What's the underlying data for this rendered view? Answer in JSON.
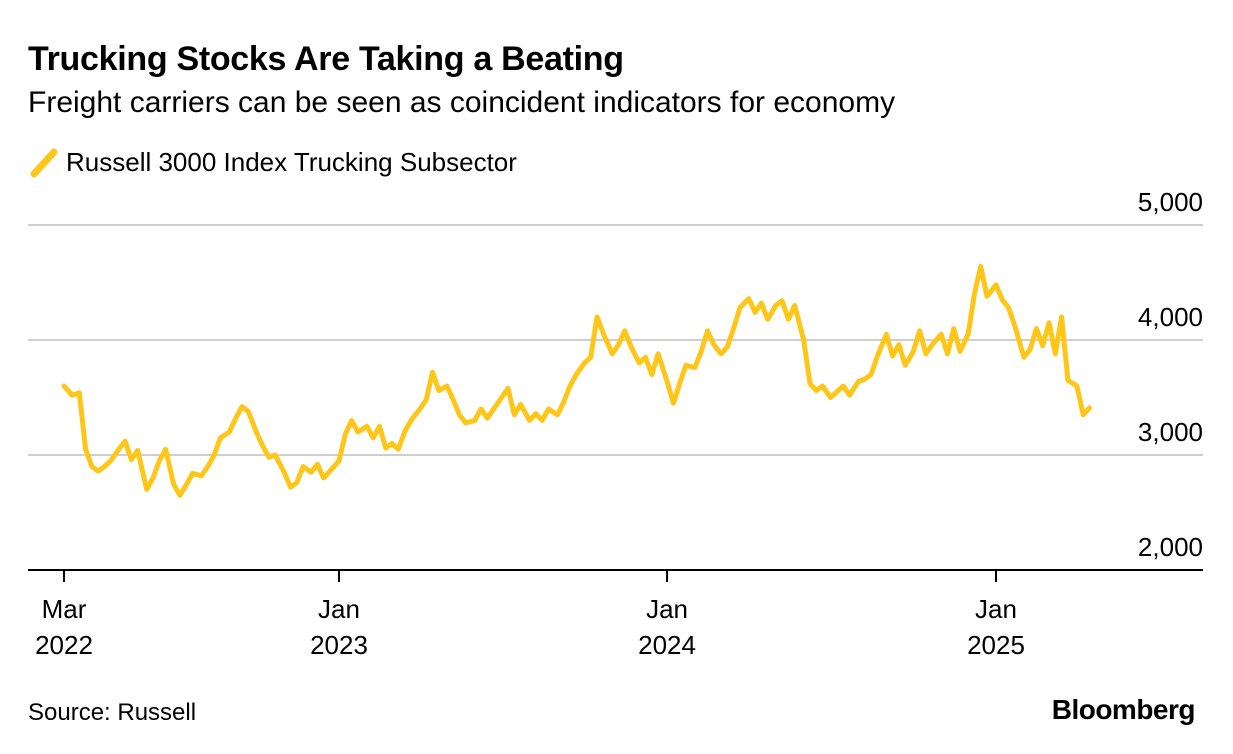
{
  "chart_data": {
    "type": "line",
    "title": "Trucking Stocks Are Taking a Beating",
    "subtitle": "Freight carriers can be seen as coincident indicators for economy",
    "source": "Source: Russell",
    "brand": "Bloomberg",
    "ylim": [
      2000,
      5000
    ],
    "y_ticks": [
      {
        "value": 5000,
        "label": "5,000"
      },
      {
        "value": 4000,
        "label": "4,000"
      },
      {
        "value": 3000,
        "label": "3,000"
      },
      {
        "value": 2000,
        "label": "2,000"
      }
    ],
    "x_range": [
      "2022-02-01",
      "2025-06-15"
    ],
    "x_ticks": [
      {
        "date": "2022-03-01",
        "label1": "Mar",
        "label2": "2022"
      },
      {
        "date": "2023-01-01",
        "label1": "Jan",
        "label2": "2023"
      },
      {
        "date": "2024-01-01",
        "label1": "Jan",
        "label2": "2024"
      },
      {
        "date": "2025-01-01",
        "label1": "Jan",
        "label2": "2025"
      }
    ],
    "grid": true,
    "legend_position": "top-left",
    "series": [
      {
        "name": "Russell 3000 Index Trucking Subsector",
        "color": "#FFC61A",
        "points": [
          [
            "2022-03-01",
            3600
          ],
          [
            "2022-03-10",
            3520
          ],
          [
            "2022-03-18",
            3540
          ],
          [
            "2022-03-25",
            3050
          ],
          [
            "2022-04-01",
            2900
          ],
          [
            "2022-04-08",
            2860
          ],
          [
            "2022-04-15",
            2900
          ],
          [
            "2022-04-22",
            2950
          ],
          [
            "2022-05-01",
            3050
          ],
          [
            "2022-05-08",
            3120
          ],
          [
            "2022-05-15",
            2960
          ],
          [
            "2022-05-22",
            3040
          ],
          [
            "2022-06-01",
            2700
          ],
          [
            "2022-06-08",
            2800
          ],
          [
            "2022-06-15",
            2950
          ],
          [
            "2022-06-22",
            3050
          ],
          [
            "2022-07-01",
            2750
          ],
          [
            "2022-07-08",
            2650
          ],
          [
            "2022-07-15",
            2740
          ],
          [
            "2022-07-22",
            2840
          ],
          [
            "2022-08-01",
            2820
          ],
          [
            "2022-08-08",
            2900
          ],
          [
            "2022-08-15",
            3000
          ],
          [
            "2022-08-22",
            3150
          ],
          [
            "2022-09-01",
            3200
          ],
          [
            "2022-09-08",
            3320
          ],
          [
            "2022-09-15",
            3420
          ],
          [
            "2022-09-22",
            3380
          ],
          [
            "2022-10-01",
            3200
          ],
          [
            "2022-10-08",
            3080
          ],
          [
            "2022-10-15",
            2980
          ],
          [
            "2022-10-22",
            3000
          ],
          [
            "2022-11-01",
            2850
          ],
          [
            "2022-11-08",
            2720
          ],
          [
            "2022-11-15",
            2760
          ],
          [
            "2022-11-22",
            2900
          ],
          [
            "2022-12-01",
            2850
          ],
          [
            "2022-12-08",
            2920
          ],
          [
            "2022-12-15",
            2800
          ],
          [
            "2022-12-22",
            2860
          ],
          [
            "2023-01-01",
            2950
          ],
          [
            "2023-01-08",
            3180
          ],
          [
            "2023-01-15",
            3300
          ],
          [
            "2023-01-22",
            3200
          ],
          [
            "2023-02-01",
            3250
          ],
          [
            "2023-02-08",
            3150
          ],
          [
            "2023-02-15",
            3250
          ],
          [
            "2023-02-22",
            3060
          ],
          [
            "2023-03-01",
            3100
          ],
          [
            "2023-03-08",
            3050
          ],
          [
            "2023-03-15",
            3200
          ],
          [
            "2023-03-22",
            3300
          ],
          [
            "2023-04-01",
            3400
          ],
          [
            "2023-04-08",
            3480
          ],
          [
            "2023-04-15",
            3720
          ],
          [
            "2023-04-22",
            3560
          ],
          [
            "2023-05-01",
            3600
          ],
          [
            "2023-05-08",
            3480
          ],
          [
            "2023-05-15",
            3350
          ],
          [
            "2023-05-22",
            3280
          ],
          [
            "2023-06-01",
            3300
          ],
          [
            "2023-06-08",
            3400
          ],
          [
            "2023-06-15",
            3320
          ],
          [
            "2023-06-22",
            3400
          ],
          [
            "2023-07-01",
            3500
          ],
          [
            "2023-07-08",
            3580
          ],
          [
            "2023-07-15",
            3350
          ],
          [
            "2023-07-22",
            3440
          ],
          [
            "2023-08-01",
            3300
          ],
          [
            "2023-08-08",
            3360
          ],
          [
            "2023-08-15",
            3300
          ],
          [
            "2023-08-22",
            3400
          ],
          [
            "2023-09-01",
            3350
          ],
          [
            "2023-09-08",
            3460
          ],
          [
            "2023-09-15",
            3600
          ],
          [
            "2023-09-22",
            3700
          ],
          [
            "2023-10-01",
            3800
          ],
          [
            "2023-10-08",
            3850
          ],
          [
            "2023-10-15",
            4200
          ],
          [
            "2023-10-22",
            4060
          ],
          [
            "2023-11-01",
            3880
          ],
          [
            "2023-11-08",
            3960
          ],
          [
            "2023-11-15",
            4080
          ],
          [
            "2023-11-22",
            3940
          ],
          [
            "2023-12-01",
            3800
          ],
          [
            "2023-12-08",
            3850
          ],
          [
            "2023-12-15",
            3700
          ],
          [
            "2023-12-22",
            3880
          ],
          [
            "2024-01-01",
            3640
          ],
          [
            "2024-01-08",
            3450
          ],
          [
            "2024-01-15",
            3620
          ],
          [
            "2024-01-22",
            3780
          ],
          [
            "2024-02-01",
            3760
          ],
          [
            "2024-02-08",
            3900
          ],
          [
            "2024-02-15",
            4080
          ],
          [
            "2024-02-22",
            3960
          ],
          [
            "2024-03-01",
            3880
          ],
          [
            "2024-03-08",
            3940
          ],
          [
            "2024-03-15",
            4100
          ],
          [
            "2024-03-22",
            4280
          ],
          [
            "2024-04-01",
            4360
          ],
          [
            "2024-04-08",
            4240
          ],
          [
            "2024-04-15",
            4320
          ],
          [
            "2024-04-22",
            4180
          ],
          [
            "2024-05-01",
            4300
          ],
          [
            "2024-05-08",
            4340
          ],
          [
            "2024-05-15",
            4180
          ],
          [
            "2024-05-22",
            4300
          ],
          [
            "2024-06-01",
            4000
          ],
          [
            "2024-06-08",
            3620
          ],
          [
            "2024-06-15",
            3560
          ],
          [
            "2024-06-22",
            3600
          ],
          [
            "2024-07-01",
            3500
          ],
          [
            "2024-07-08",
            3550
          ],
          [
            "2024-07-15",
            3600
          ],
          [
            "2024-07-22",
            3520
          ],
          [
            "2024-08-01",
            3640
          ],
          [
            "2024-08-08",
            3660
          ],
          [
            "2024-08-15",
            3700
          ],
          [
            "2024-08-22",
            3860
          ],
          [
            "2024-09-01",
            4050
          ],
          [
            "2024-09-08",
            3860
          ],
          [
            "2024-09-15",
            3960
          ],
          [
            "2024-09-22",
            3780
          ],
          [
            "2024-10-01",
            3900
          ],
          [
            "2024-10-08",
            4080
          ],
          [
            "2024-10-15",
            3880
          ],
          [
            "2024-10-22",
            3960
          ],
          [
            "2024-11-01",
            4050
          ],
          [
            "2024-11-08",
            3880
          ],
          [
            "2024-11-15",
            4100
          ],
          [
            "2024-11-22",
            3900
          ],
          [
            "2024-12-01",
            4050
          ],
          [
            "2024-12-08",
            4400
          ],
          [
            "2024-12-15",
            4640
          ],
          [
            "2024-12-22",
            4380
          ],
          [
            "2025-01-01",
            4480
          ],
          [
            "2025-01-08",
            4350
          ],
          [
            "2025-01-15",
            4280
          ],
          [
            "2025-01-22",
            4120
          ],
          [
            "2025-02-01",
            3850
          ],
          [
            "2025-02-08",
            3920
          ],
          [
            "2025-02-15",
            4100
          ],
          [
            "2025-02-22",
            3950
          ],
          [
            "2025-03-01",
            4150
          ],
          [
            "2025-03-08",
            3880
          ],
          [
            "2025-03-15",
            4200
          ],
          [
            "2025-03-22",
            3650
          ],
          [
            "2025-04-01",
            3600
          ],
          [
            "2025-04-08",
            3350
          ],
          [
            "2025-04-15",
            3410
          ]
        ]
      }
    ]
  }
}
